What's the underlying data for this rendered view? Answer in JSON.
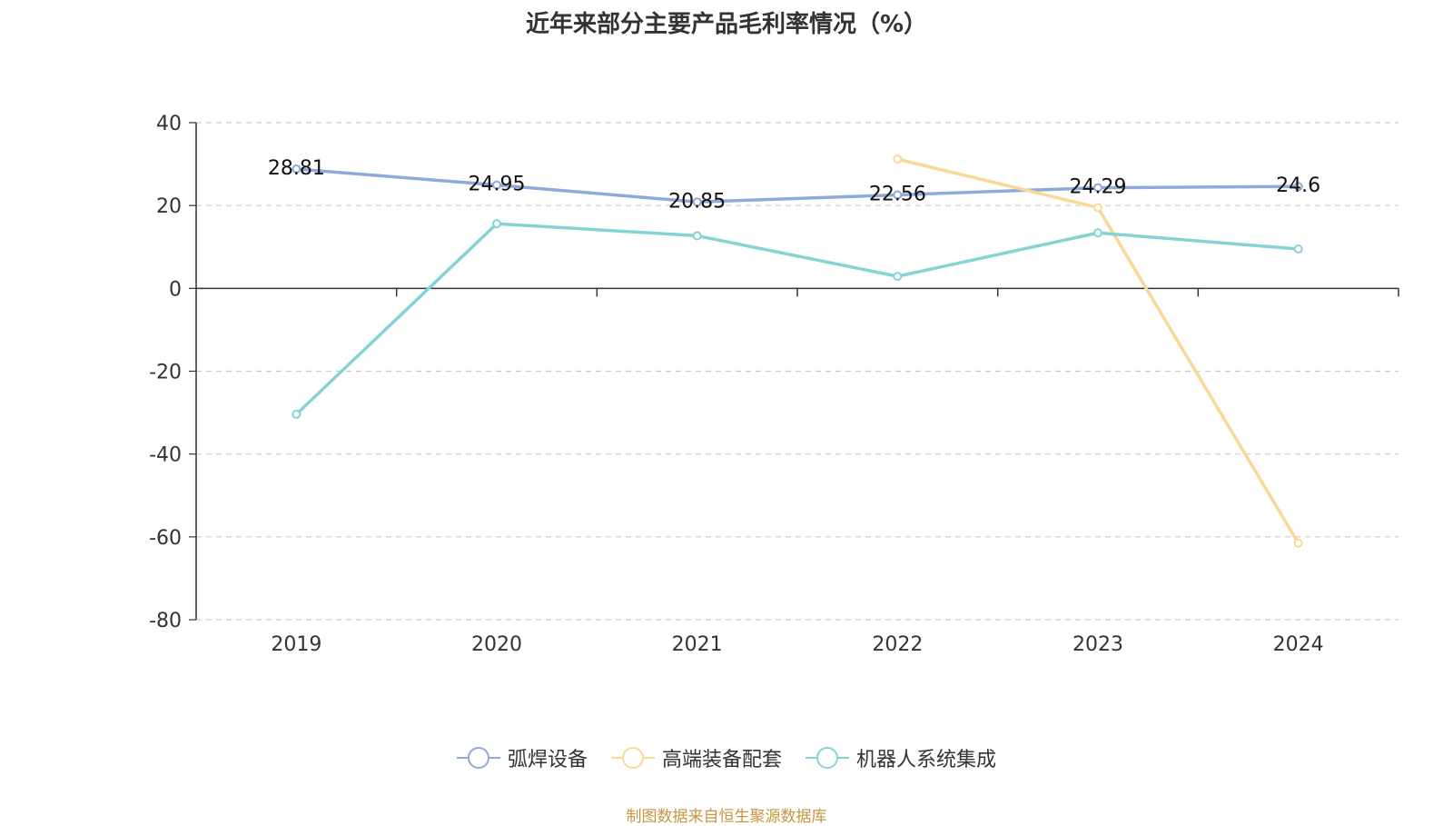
{
  "colors": {
    "series": [
      "#8eaad9",
      "#f9d898",
      "#86d3d6"
    ],
    "source_text": "#c8963e"
  },
  "chart_data": {
    "type": "line",
    "title": "近年来部分主要产品毛利率情况（%）",
    "xlabel": "",
    "ylabel": "",
    "categories": [
      "2019",
      "2020",
      "2021",
      "2022",
      "2023",
      "2024"
    ],
    "ylim": [
      -80,
      40
    ],
    "yticks": [
      "40",
      "20",
      "0",
      "-20",
      "-40",
      "-60",
      "-80"
    ],
    "grid": true,
    "legend_position": "bottom",
    "series": [
      {
        "name": "弧焊设备",
        "values": [
          28.81,
          24.95,
          20.85,
          22.56,
          24.29,
          24.6
        ],
        "data_labels": [
          "28.81",
          "24.95",
          "20.85",
          "22.56",
          "24.29",
          "24.6"
        ]
      },
      {
        "name": "高端装备配套",
        "values": [
          null,
          null,
          null,
          31.2,
          19.5,
          -61.5
        ]
      },
      {
        "name": "机器人系统集成",
        "values": [
          -30.4,
          15.6,
          12.7,
          2.9,
          13.4,
          9.5
        ]
      }
    ]
  },
  "source": "制图数据来自恒生聚源数据库"
}
